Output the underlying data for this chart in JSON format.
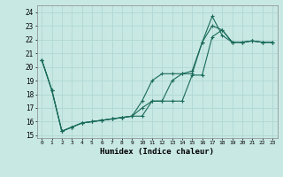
{
  "xlabel": "Humidex (Indice chaleur)",
  "bg_color": "#c8e8e4",
  "grid_color": "#b0d8d4",
  "line_color": "#1a6b5a",
  "xlim": [
    -0.5,
    23.5
  ],
  "ylim": [
    14.8,
    24.5
  ],
  "yticks": [
    15,
    16,
    17,
    18,
    19,
    20,
    21,
    22,
    23,
    24
  ],
  "xticks": [
    0,
    1,
    2,
    3,
    4,
    5,
    6,
    7,
    8,
    9,
    10,
    11,
    12,
    13,
    14,
    15,
    16,
    17,
    18,
    19,
    20,
    21,
    22,
    23
  ],
  "line1_x": [
    0,
    1,
    2,
    3,
    4,
    5,
    6,
    7,
    8,
    9,
    10,
    11,
    12,
    13,
    14,
    15,
    16,
    17,
    18,
    19,
    20,
    21,
    22,
    23
  ],
  "line1_y": [
    20.5,
    18.3,
    15.3,
    15.6,
    15.9,
    16.0,
    16.1,
    16.2,
    16.3,
    16.4,
    17.0,
    17.5,
    17.5,
    17.5,
    17.5,
    19.4,
    19.4,
    22.2,
    22.7,
    21.8,
    21.8,
    21.9,
    21.8,
    21.8
  ],
  "line2_x": [
    0,
    1,
    2,
    3,
    4,
    5,
    6,
    7,
    8,
    9,
    10,
    11,
    12,
    13,
    14,
    15,
    16,
    17,
    18,
    19,
    20,
    21,
    22,
    23
  ],
  "line2_y": [
    20.5,
    18.3,
    15.3,
    15.6,
    15.9,
    16.0,
    16.1,
    16.2,
    16.3,
    16.4,
    17.5,
    19.0,
    19.5,
    19.5,
    19.5,
    19.7,
    21.8,
    23.7,
    22.3,
    21.8,
    21.8,
    21.9,
    21.8,
    21.8
  ],
  "line3_x": [
    0,
    1,
    2,
    3,
    4,
    5,
    6,
    7,
    8,
    9,
    10,
    11,
    12,
    13,
    14,
    15,
    16,
    17,
    18,
    19,
    20,
    21,
    22,
    23
  ],
  "line3_y": [
    20.5,
    18.3,
    15.3,
    15.6,
    15.9,
    16.0,
    16.1,
    16.2,
    16.3,
    16.4,
    16.4,
    17.5,
    17.5,
    19.0,
    19.5,
    19.5,
    21.8,
    23.0,
    22.7,
    21.8,
    21.8,
    21.9,
    21.8,
    21.8
  ]
}
